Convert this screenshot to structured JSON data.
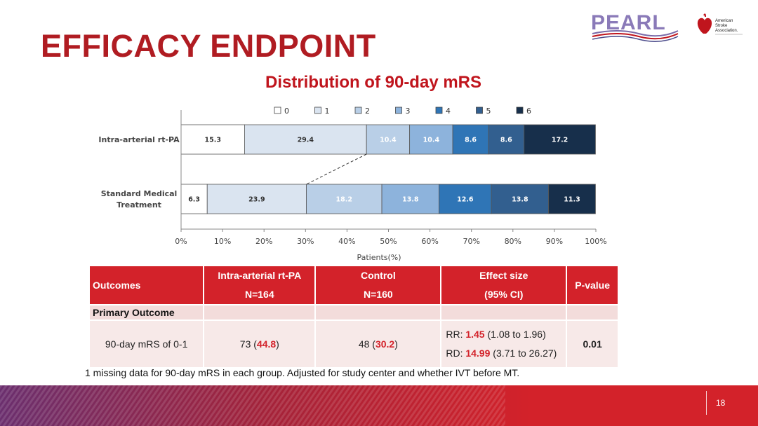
{
  "slide": {
    "title": "EFFICACY ENDPOINT",
    "page_number": "18",
    "logo_pearl": "PEARL",
    "logo_aha_lines": [
      "American",
      "Stroke",
      "Association."
    ]
  },
  "colors": {
    "title_red": "#b01c22",
    "table_header_red": "#d3222a",
    "highlight_red": "#d3222a",
    "mrs_0": "#ffffff",
    "mrs_1": "#dae4f0",
    "mrs_2": "#b9cfe7",
    "mrs_3": "#8db3dc",
    "mrs_4": "#2f75b6",
    "mrs_5": "#325f8f",
    "mrs_6": "#172f4b"
  },
  "chart_data": {
    "type": "bar",
    "orientation": "horizontal-stacked",
    "title": "Distribution of 90-day mRS",
    "xlabel": "Patients(%)",
    "ylabel": "",
    "xlim": [
      0,
      100
    ],
    "x_ticks": [
      "0%",
      "10%",
      "20%",
      "30%",
      "40%",
      "50%",
      "60%",
      "70%",
      "80%",
      "90%",
      "100%"
    ],
    "legend_position": "top",
    "categories": [
      "Intra-arterial rt-PA",
      "Standard Medical Treatment"
    ],
    "category_lines": [
      [
        "Intra-arterial rt-PA"
      ],
      [
        "Standard Medical",
        "Treatment"
      ]
    ],
    "series": [
      {
        "name": "0",
        "values": [
          15.3,
          6.3
        ],
        "labels": [
          "15.3",
          "6.3"
        ],
        "color": "#ffffff",
        "text_color": "#333333"
      },
      {
        "name": "1",
        "values": [
          29.4,
          23.9
        ],
        "labels": [
          "29.4",
          "23.9"
        ],
        "color": "#dae4f0",
        "text_color": "#333333"
      },
      {
        "name": "2",
        "values": [
          10.4,
          18.2
        ],
        "labels": [
          "10.4",
          "18.2"
        ],
        "color": "#b9cfe7",
        "text_color": "#ffffff"
      },
      {
        "name": "3",
        "values": [
          10.4,
          13.8
        ],
        "labels": [
          "10.4",
          "13.8"
        ],
        "color": "#8db3dc",
        "text_color": "#ffffff"
      },
      {
        "name": "4",
        "values": [
          8.6,
          12.6
        ],
        "labels": [
          "8.6",
          "12.6"
        ],
        "color": "#2f75b6",
        "text_color": "#ffffff"
      },
      {
        "name": "5",
        "values": [
          8.6,
          13.8
        ],
        "labels": [
          "8.6",
          "13.8"
        ],
        "color": "#325f8f",
        "text_color": "#ffffff"
      },
      {
        "name": "6",
        "values": [
          17.2,
          11.3
        ],
        "labels": [
          "17.2",
          "11.3"
        ],
        "color": "#172f4b",
        "text_color": "#ffffff"
      }
    ],
    "annotations": [
      "dashed line connecting cumulative mRS 0-1 boundary between groups"
    ]
  },
  "table": {
    "header": {
      "outcomes": "Outcomes",
      "iat_line1": "Intra-arterial rt-PA",
      "iat_line2": "N=164",
      "control_line1": "Control",
      "control_line2": "N=160",
      "effect_line1": "Effect size",
      "effect_line2": "(95% CI)",
      "pvalue": "P-value"
    },
    "section_label": "Primary Outcome",
    "row": {
      "outcome": "90-day mRS of 0-1",
      "iat_n": "73 (",
      "iat_pct": "44.8",
      "iat_close": ")",
      "ctrl_n": "48 (",
      "ctrl_pct": "30.2",
      "ctrl_close": ")",
      "rr_label": "RR: ",
      "rr_value": "1.45",
      "rr_ci": " (1.08 to 1.96)",
      "rd_label": "RD: ",
      "rd_value": "14.99",
      "rd_ci": " (3.71 to 26.27)",
      "pvalue": "0.01"
    }
  },
  "footnote": "1 missing data for 90-day mRS in each group. Adjusted for study center and whether IVT before MT."
}
